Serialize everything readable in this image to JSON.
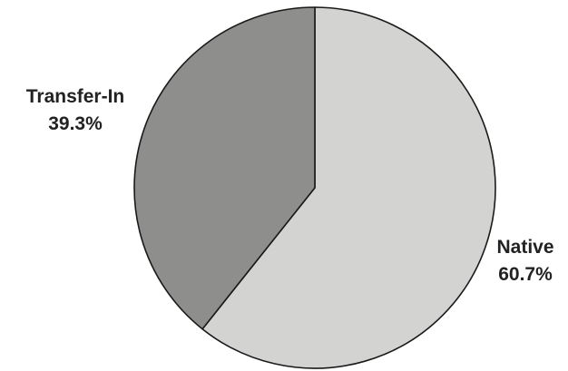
{
  "chart_data": {
    "type": "pie",
    "start_angle_deg_from_top": 0,
    "direction": "clockwise",
    "slices": [
      {
        "name": "Native",
        "label": "Native",
        "value": 60.7,
        "value_label": "60.7%",
        "color": "#d3d3d1"
      },
      {
        "name": "Transfer-In",
        "label": "Transfer-In",
        "value": 39.3,
        "value_label": "39.3%",
        "color": "#8e8e8c"
      }
    ],
    "legend": "none"
  }
}
